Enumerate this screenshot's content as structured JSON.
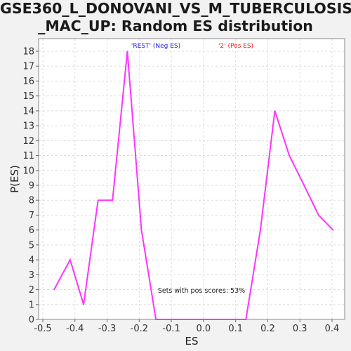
{
  "chart_data": {
    "type": "line",
    "title_line1": "GSE360_L_DONOVANI_VS_M_TUBERCULOSIS",
    "title_line2": "_MAC_UP: Random ES distribution",
    "xlabel": "ES",
    "ylabel": "P(ES)",
    "xlim": [
      -0.5,
      0.45
    ],
    "ylim": [
      0,
      19
    ],
    "x_ticks": [
      "-0.5",
      "-0.4",
      "-0.3",
      "-0.2",
      "-0.1",
      "0.0",
      "0.1",
      "0.2",
      "0.3",
      "0.4"
    ],
    "x_tick_values": [
      -0.5,
      -0.4,
      -0.3,
      -0.2,
      -0.1,
      0.0,
      0.1,
      0.2,
      0.3,
      0.4
    ],
    "y_ticks": [
      "0",
      "1",
      "2",
      "3",
      "4",
      "5",
      "6",
      "7",
      "8",
      "9",
      "10",
      "11",
      "12",
      "13",
      "14",
      "15",
      "16",
      "17",
      "18"
    ],
    "y_tick_values": [
      0,
      1,
      2,
      3,
      4,
      5,
      6,
      7,
      8,
      9,
      10,
      11,
      12,
      13,
      14,
      15,
      16,
      17,
      18
    ],
    "grid": true,
    "legend": {
      "neg_label": "'REST' (Neg ES)",
      "pos_label": "'2' (Pos ES)",
      "neg_color": "#1a1aff",
      "pos_color": "#ff1a1a"
    },
    "annotation": "Sets with pos scores: 53%",
    "series": [
      {
        "color": "#ff33ff",
        "x": [
          -0.465,
          -0.415,
          -0.373,
          -0.328,
          -0.283,
          -0.237,
          -0.193,
          -0.148,
          -0.103,
          -0.058,
          -0.013,
          0.032,
          0.087,
          0.132,
          0.177,
          0.222,
          0.267,
          0.313,
          0.358,
          0.403
        ],
        "y": [
          2,
          4,
          1,
          8,
          8,
          18,
          6,
          0,
          0,
          0,
          0,
          0,
          0,
          0,
          6,
          14,
          11,
          9,
          7,
          6
        ]
      }
    ]
  }
}
